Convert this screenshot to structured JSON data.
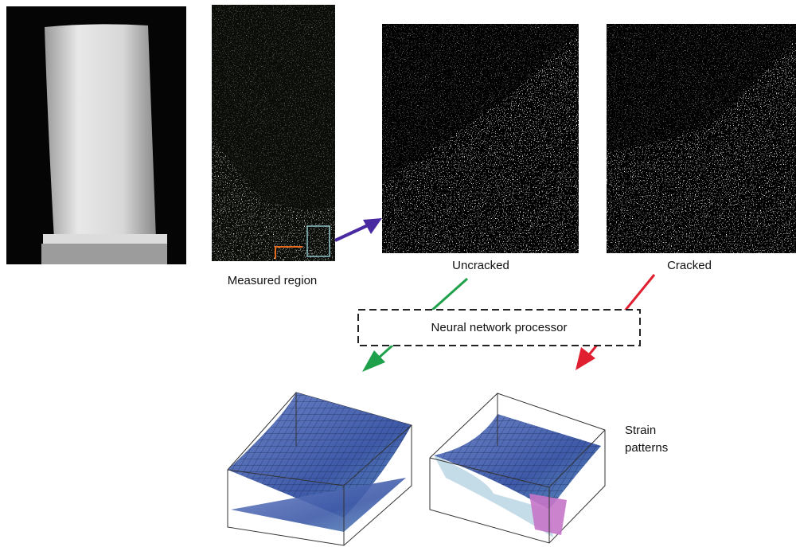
{
  "panels": [
    {
      "label": "Measured region"
    },
    {
      "label": "Uncracked"
    },
    {
      "label": "Cracked"
    }
  ],
  "processor": {
    "label": "Neural network processor"
  },
  "strain_patterns": {
    "lines": [
      "Strain",
      "patterns"
    ]
  }
}
